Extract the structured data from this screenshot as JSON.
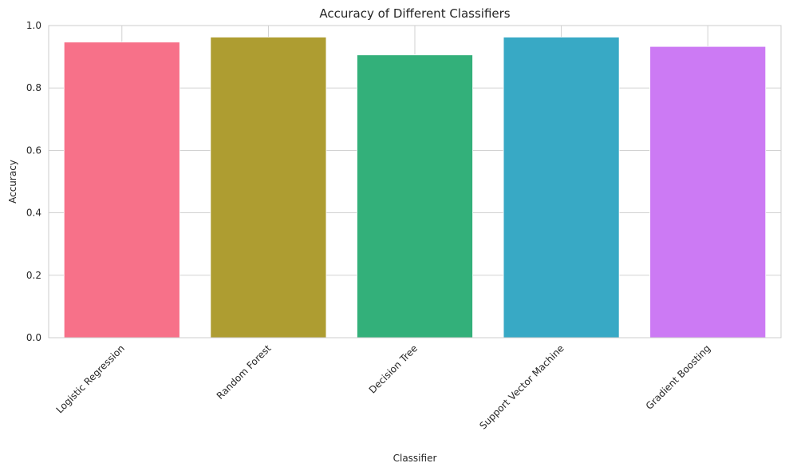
{
  "chart_data": {
    "type": "bar",
    "title": "Accuracy of Different Classifiers",
    "xlabel": "Classifier",
    "ylabel": "Accuracy",
    "categories": [
      "Logistic Regression",
      "Random Forest",
      "Decision Tree",
      "Support Vector Machine",
      "Gradient Boosting"
    ],
    "values": [
      0.947,
      0.963,
      0.906,
      0.963,
      0.933
    ],
    "colors": [
      "#f77189",
      "#ae9d31",
      "#33b07a",
      "#38a9c5",
      "#cc7af4"
    ],
    "ylim": [
      0,
      1.0
    ],
    "yticks": [
      0.0,
      0.2,
      0.4,
      0.6,
      0.8,
      1.0
    ],
    "ytick_labels": [
      "0.0",
      "0.2",
      "0.4",
      "0.6",
      "0.8",
      "1.0"
    ],
    "grid": true,
    "legend": false
  }
}
